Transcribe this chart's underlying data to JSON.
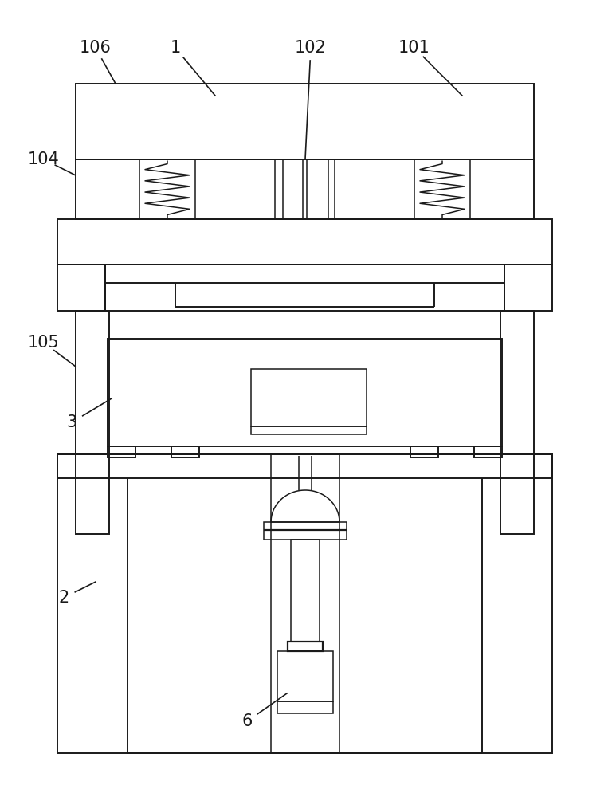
{
  "bg_color": "#ffffff",
  "line_color": "#1a1a1a",
  "lw": 1.4,
  "lw2": 1.1,
  "fig_width": 7.68,
  "fig_height": 10.0,
  "label_fontsize": 15
}
